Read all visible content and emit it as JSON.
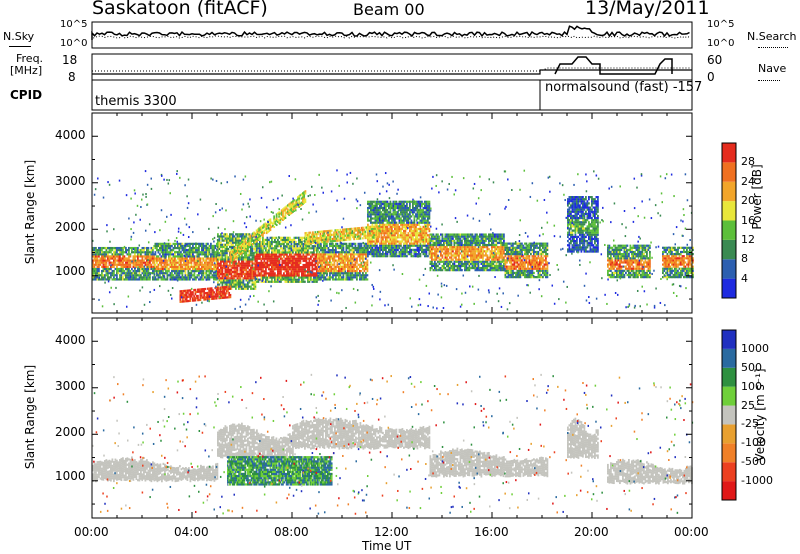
{
  "header": {
    "station": "Saskatoon (fitACF)",
    "beam": "Beam 00",
    "date": "13/May/2011"
  },
  "info_panels": {
    "nsky_label": "N.Sky",
    "nsearch_label": "N.Search",
    "noise_ticks_left": [
      "10^5",
      "10^0"
    ],
    "noise_ticks_right": [
      "10^5",
      "10^0"
    ],
    "freq_label_1": "Freq.",
    "freq_label_2": "[MHz]",
    "freq_ticks": [
      "18",
      "8"
    ],
    "nave_label": "Nave",
    "nave_ticks": [
      "60",
      "0"
    ],
    "cpid_label": "CPID",
    "cpid_1": "themis 3300",
    "cpid_2": "normalsound (fast) -157"
  },
  "colors": {
    "power": [
      "#1e2be0",
      "#2c5fb0",
      "#3a8a52",
      "#5cbf3a",
      "#e8e63a",
      "#f2a52a",
      "#f07020",
      "#e52c1e"
    ],
    "velocity": [
      "#2030c0",
      "#2a6aa0",
      "#2e9040",
      "#6fcf3a",
      "#c4c4be",
      "#e8a030",
      "#f08028",
      "#ec4020",
      "#e01818"
    ],
    "ground_scatter": "#c4c4be"
  },
  "chart_data": [
    {
      "type": "heatmap",
      "name": "Power",
      "ylabel": "Slant Range [km]",
      "x_ticks": [
        "00:00",
        "04:00",
        "08:00",
        "12:00",
        "16:00",
        "20:00",
        "00:00"
      ],
      "y_ticks": [
        "1000",
        "2000",
        "3000",
        "4000"
      ],
      "ylim": [
        200,
        4500
      ],
      "xlim_hours": [
        0,
        24
      ],
      "colorbar_label": "Power [dB]",
      "colorbar_ticks": [
        "4",
        "8",
        "12",
        "16",
        "20",
        "24",
        "28"
      ],
      "colorbar_range": [
        0,
        30
      ],
      "bands": [
        {
          "x": [
            0.0,
            2.5
          ],
          "y": [
            900,
            1600
          ],
          "core": [
            1150,
            1400
          ],
          "level": 0.75
        },
        {
          "x": [
            2.5,
            5.0
          ],
          "y": [
            900,
            1700
          ],
          "core": [
            1100,
            1350
          ],
          "level": 0.7
        },
        {
          "x": [
            5.0,
            6.5
          ],
          "y": [
            700,
            1900
          ],
          "core": [
            900,
            1300
          ],
          "level": 0.9
        },
        {
          "x": [
            6.5,
            9.0
          ],
          "y": [
            850,
            1800
          ],
          "core": [
            950,
            1450
          ],
          "level": 0.95
        },
        {
          "x": [
            9.0,
            11.0
          ],
          "y": [
            900,
            1700
          ],
          "core": [
            1050,
            1450
          ],
          "level": 0.7
        },
        {
          "x": [
            11.0,
            13.5
          ],
          "y": [
            1400,
            2600
          ],
          "core": [
            1650,
            2100
          ],
          "level": 0.65
        },
        {
          "x": [
            13.5,
            16.5
          ],
          "y": [
            1100,
            1900
          ],
          "core": [
            1300,
            1600
          ],
          "level": 0.7
        },
        {
          "x": [
            16.5,
            18.2
          ],
          "y": [
            950,
            1700
          ],
          "core": [
            1100,
            1400
          ],
          "level": 0.75
        },
        {
          "x": [
            19.0,
            20.2
          ],
          "y": [
            1500,
            2700
          ],
          "core": [
            1900,
            2200
          ],
          "level": 0.35
        },
        {
          "x": [
            20.6,
            22.3
          ],
          "y": [
            950,
            1650
          ],
          "core": [
            1100,
            1350
          ],
          "level": 0.75
        },
        {
          "x": [
            22.8,
            24.0
          ],
          "y": [
            950,
            1600
          ],
          "core": [
            1150,
            1400
          ],
          "level": 0.75
        }
      ],
      "arcs": [
        {
          "x": [
            5.5,
            8.5
          ],
          "y0": 1400,
          "y1": 2700,
          "level": 0.55
        },
        {
          "x": [
            8.5,
            11.5
          ],
          "y0": 1800,
          "y1": 1950,
          "level": 0.6
        },
        {
          "x": [
            3.5,
            5.5
          ],
          "y0": 550,
          "y1": 650,
          "level": 0.95
        }
      ]
    },
    {
      "type": "heatmap",
      "name": "Velocity",
      "xlabel": "Time UT",
      "ylabel": "Slant Range [km]",
      "x_ticks": [
        "00:00",
        "04:00",
        "08:00",
        "12:00",
        "16:00",
        "20:00",
        "00:00"
      ],
      "y_ticks": [
        "1000",
        "2000",
        "3000",
        "4000"
      ],
      "ylim": [
        200,
        4500
      ],
      "xlim_hours": [
        0,
        24
      ],
      "colorbar_label": "Velocity [m s⁻¹]",
      "colorbar_ticks": [
        "1000",
        "500",
        "100",
        "25",
        "-25",
        "-100",
        "-500",
        "-1000"
      ],
      "ground_band": [
        {
          "x": [
            0.0,
            5.0
          ],
          "y": [
            1000,
            1650
          ]
        },
        {
          "x": [
            5.0,
            8.0
          ],
          "y": [
            1500,
            2500
          ]
        },
        {
          "x": [
            8.0,
            13.5
          ],
          "y": [
            1700,
            2600
          ]
        },
        {
          "x": [
            13.5,
            18.2
          ],
          "y": [
            1100,
            1900
          ]
        },
        {
          "x": [
            19.0,
            20.2
          ],
          "y": [
            1500,
            2700
          ]
        },
        {
          "x": [
            20.6,
            24.0
          ],
          "y": [
            950,
            1650
          ]
        }
      ],
      "ionospheric_patch": {
        "x": [
          5.4,
          9.6
        ],
        "y": [
          900,
          1500
        ],
        "levels": [
          "#2e9040",
          "#6fcf3a",
          "#2a6aa0"
        ]
      }
    }
  ]
}
